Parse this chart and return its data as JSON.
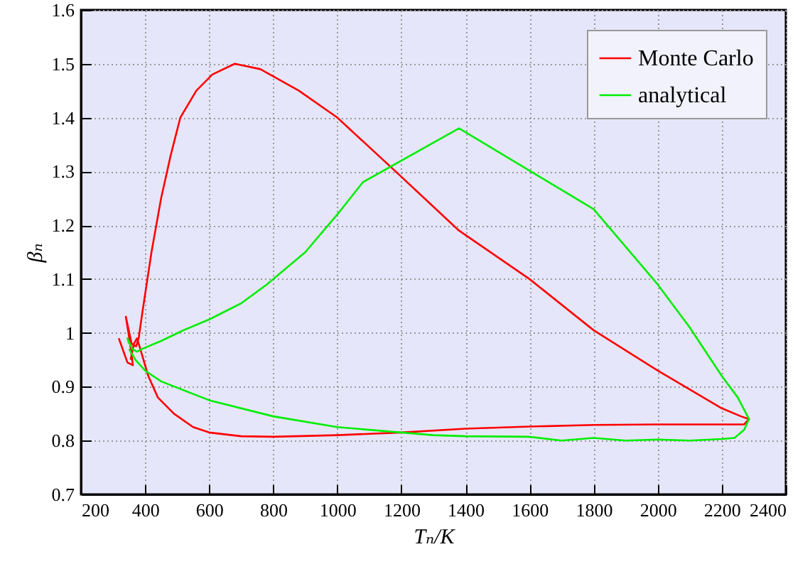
{
  "chart_data": {
    "type": "line",
    "xlabel": "Tₙ/K",
    "ylabel": "βₙ",
    "xlim": [
      200,
      2400
    ],
    "xticks": [
      200,
      400,
      600,
      800,
      1000,
      1200,
      1400,
      1600,
      1800,
      2000,
      2200,
      2400
    ],
    "ylim": [
      0.7,
      1.6
    ],
    "yticks": [
      0.7,
      0.8,
      0.9,
      1,
      1.1,
      1.2,
      1.3,
      1.4,
      1.5,
      1.6
    ],
    "grid": true,
    "legend": "top right",
    "marker": "none",
    "line_style": "solid",
    "series": [
      {
        "name": "Monte Carlo",
        "color": "#ff0000",
        "x": [
          318,
          345,
          362,
          352,
          340,
          358,
          372,
          380,
          392,
          420,
          450,
          480,
          510,
          560,
          610,
          680,
          760,
          880,
          1000,
          1200,
          1380,
          1600,
          1800,
          2000,
          2200,
          2260,
          2285,
          2270,
          2000,
          1800,
          1600,
          1400,
          1200,
          1000,
          800,
          700,
          600,
          550,
          490,
          440,
          410,
          390,
          375,
          365,
          355
        ],
        "values": [
          0.99,
          0.945,
          0.94,
          0.985,
          1.03,
          0.98,
          0.975,
          0.99,
          1.04,
          1.15,
          1.25,
          1.33,
          1.4,
          1.45,
          1.48,
          1.5,
          1.49,
          1.45,
          1.4,
          1.29,
          1.19,
          1.1,
          1.005,
          0.93,
          0.86,
          0.845,
          0.84,
          0.83,
          0.83,
          0.829,
          0.826,
          0.822,
          0.815,
          0.81,
          0.807,
          0.808,
          0.815,
          0.825,
          0.85,
          0.88,
          0.92,
          0.96,
          0.99,
          0.98,
          0.95
        ]
      },
      {
        "name": "analytical",
        "color": "#00ee00",
        "x": [
          350,
          345,
          360,
          375,
          390,
          450,
          520,
          600,
          700,
          780,
          900,
          1000,
          1080,
          1380,
          1800,
          2000,
          2100,
          2200,
          2250,
          2285,
          2270,
          2240,
          2200,
          2100,
          2000,
          1900,
          1800,
          1700,
          1600,
          1400,
          1300,
          1200,
          1000,
          800,
          600,
          450,
          400,
          370,
          350
        ],
        "values": [
          0.98,
          0.99,
          0.97,
          0.965,
          0.97,
          0.985,
          1.005,
          1.025,
          1.055,
          1.09,
          1.15,
          1.22,
          1.28,
          1.38,
          1.23,
          1.09,
          1.01,
          0.92,
          0.88,
          0.84,
          0.82,
          0.805,
          0.803,
          0.8,
          0.802,
          0.8,
          0.805,
          0.8,
          0.807,
          0.808,
          0.81,
          0.815,
          0.825,
          0.845,
          0.875,
          0.91,
          0.93,
          0.95,
          0.97
        ]
      }
    ]
  }
}
